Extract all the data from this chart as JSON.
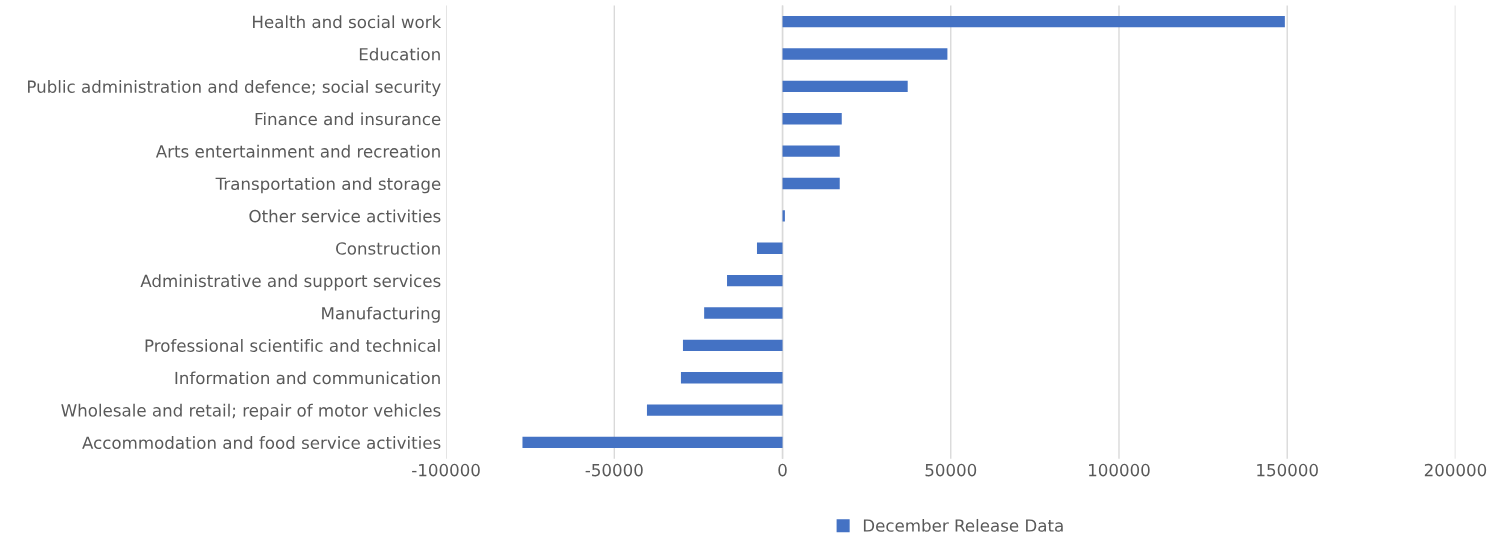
{
  "chart_data": {
    "type": "bar",
    "orientation": "horizontal",
    "categories": [
      "Health and social work",
      "Education",
      "Public administration and defence; social security",
      "Finance and insurance",
      "Arts entertainment and recreation",
      "Transportation and storage",
      "Other service activities",
      "Construction",
      "Administrative and support services",
      "Manufacturing",
      "Professional scientific and technical",
      "Information and communication",
      "Wholesale and retail; repair of motor vehicles",
      "Accommodation and food service activities"
    ],
    "series": [
      {
        "name": "December Release Data",
        "color": "#4472c4",
        "values": [
          149300,
          49000,
          37200,
          17600,
          17000,
          17000,
          700,
          -7600,
          -16500,
          -23300,
          -29600,
          -30200,
          -40300,
          -77300
        ]
      }
    ],
    "xlim": [
      -100000,
      200000
    ],
    "xticks": [
      -100000,
      -50000,
      0,
      50000,
      100000,
      150000,
      200000
    ],
    "grid": "x",
    "legend": "bottom"
  }
}
